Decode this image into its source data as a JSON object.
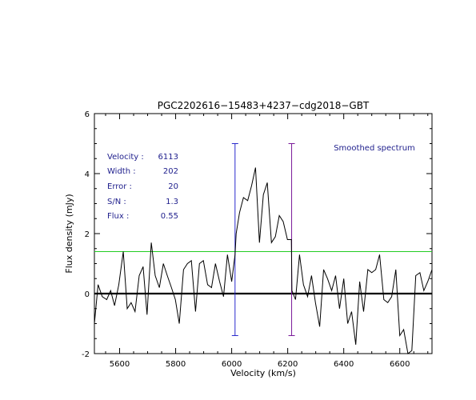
{
  "chart_data": {
    "type": "line",
    "title": "PGC2202616−15483+4237−cdg2018−GBT",
    "xlabel": "Velocity (km/s)",
    "ylabel": "Flux density (mJy)",
    "xlim": [
      5510,
      6715
    ],
    "ylim": [
      -2.0,
      6.0
    ],
    "xticks": [
      5600,
      5800,
      6000,
      6200,
      6400,
      6600
    ],
    "yticks": [
      -2,
      0,
      2,
      4,
      6
    ],
    "legend_text": "Smoothed spectrum",
    "stats": [
      {
        "label": "Velocity :",
        "value": "6113"
      },
      {
        "label": "Width :",
        "value": "202"
      },
      {
        "label": "Error :",
        "value": "20"
      },
      {
        "label": "S/N :",
        "value": "1.3"
      },
      {
        "label": "Flux :",
        "value": "0.55"
      }
    ],
    "baseline_y": 0,
    "threshold_y": 1.4,
    "markers": [
      {
        "x": 6012,
        "y_bottom": -1.4,
        "y_top": 5.0
      },
      {
        "x": 6214,
        "y_bottom": -1.4,
        "y_top": 5.0
      }
    ],
    "series": [
      {
        "x": [
          5510,
          5523,
          5538,
          5554,
          5568,
          5582,
          5597,
          5613,
          5627,
          5641,
          5655,
          5670,
          5684,
          5698,
          5713,
          5727,
          5742,
          5756,
          5770,
          5785,
          5799,
          5813,
          5828,
          5842,
          5856,
          5871,
          5885,
          5899,
          5914,
          5928,
          5942,
          5957,
          5971,
          5985,
          6000,
          6012,
          6016,
          6028,
          6042,
          6057,
          6071,
          6085,
          6099,
          6113,
          6127,
          6142,
          6156,
          6170,
          6184,
          6199,
          6213,
          6215,
          6228,
          6242,
          6256,
          6271,
          6285,
          6299,
          6314,
          6328,
          6342,
          6357,
          6371,
          6385,
          6400,
          6414,
          6428,
          6443,
          6457,
          6471,
          6486,
          6500,
          6514,
          6528,
          6543,
          6557,
          6571,
          6586,
          6600,
          6614,
          6629,
          6643,
          6657,
          6672,
          6686,
          6700,
          6715
        ],
        "y": [
          -1.0,
          0.3,
          -0.1,
          -0.2,
          0.1,
          -0.4,
          0.3,
          1.4,
          -0.5,
          -0.3,
          -0.6,
          0.6,
          0.9,
          -0.7,
          1.7,
          0.6,
          0.2,
          1.0,
          0.6,
          0.2,
          -0.2,
          -1.0,
          0.8,
          1.0,
          1.1,
          -0.6,
          1.0,
          1.1,
          0.3,
          0.2,
          1.0,
          0.4,
          -0.1,
          1.3,
          0.4,
          1.3,
          2.0,
          2.7,
          3.2,
          3.1,
          3.6,
          4.2,
          1.7,
          3.3,
          3.7,
          1.7,
          1.9,
          2.6,
          2.4,
          1.8,
          1.8,
          0.1,
          -0.2,
          1.3,
          0.3,
          -0.1,
          0.6,
          -0.3,
          -1.1,
          0.8,
          0.5,
          0.1,
          0.6,
          -0.5,
          0.5,
          -1.0,
          -0.6,
          -1.7,
          0.4,
          -0.6,
          0.8,
          0.7,
          0.8,
          1.3,
          -0.2,
          -0.3,
          -0.1,
          0.8,
          -1.4,
          -1.2,
          -2.0,
          -1.9,
          0.6,
          0.7,
          0.1,
          0.4,
          0.8
        ]
      }
    ]
  }
}
